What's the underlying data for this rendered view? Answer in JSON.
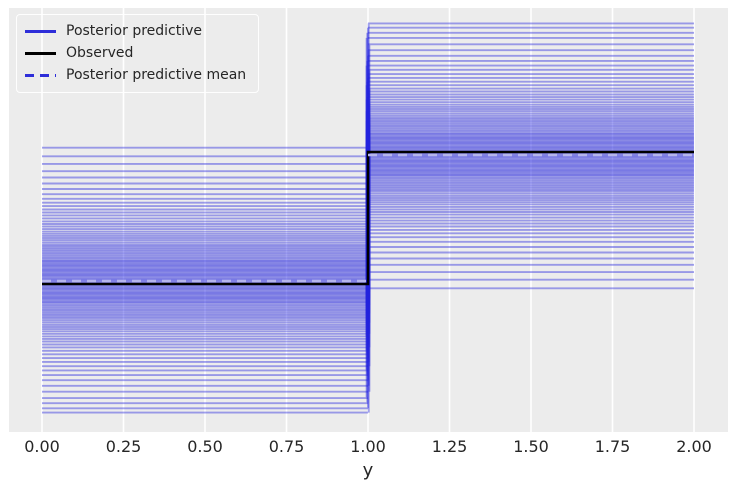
{
  "figure": {
    "background": "#ffffff",
    "axes_background": "#ececec",
    "grid_color": "#ffffff",
    "text_color": "#262626"
  },
  "legend": {
    "items": [
      {
        "label": "Posterior predictive",
        "color": "#2e2ed9",
        "style": "solid"
      },
      {
        "label": "Observed",
        "color": "#000000",
        "style": "solid"
      },
      {
        "label": "Posterior predictive mean",
        "color": "#2e2ed9",
        "style": "dashed"
      }
    ]
  },
  "chart_data": {
    "type": "line",
    "subtype": "posterior-predictive-check-discrete-step",
    "title": "",
    "xlabel": "y",
    "ylabel": "",
    "x_ticks": [
      "0.00",
      "0.25",
      "0.50",
      "0.75",
      "1.00",
      "1.25",
      "1.50",
      "1.75",
      "2.00"
    ],
    "xlim": [
      -0.1,
      2.1
    ],
    "ylim": [
      0,
      1
    ],
    "grid": "vertical-only",
    "legend_position": "upper-left",
    "observed_step": {
      "x": [
        0,
        1,
        1,
        2
      ],
      "y": [
        0.345,
        0.345,
        0.655,
        0.655
      ],
      "color": "#000000"
    },
    "mean_step": {
      "x": [
        0,
        1,
        1,
        2
      ],
      "y": [
        0.352,
        0.352,
        0.648,
        0.648
      ],
      "style": "dashed",
      "color_legend": "#2e2ed9",
      "color_on_plot": "#b6b6ec"
    },
    "posterior_draws": {
      "color": "#2323dd",
      "alpha": 0.42,
      "description": "each draw d is plotted as a step: horizontal line y=1-d for x in [0,1], vertical connector at x=1, horizontal line y=d for x in [1,2]",
      "p_one": [
        0.335,
        0.355,
        0.373,
        0.39,
        0.405,
        0.419,
        0.432,
        0.444,
        0.455,
        0.464,
        0.472,
        0.48,
        0.487,
        0.494,
        0.501,
        0.508,
        0.514,
        0.52,
        0.526,
        0.532,
        0.537,
        0.542,
        0.547,
        0.552,
        0.557,
        0.562,
        0.566,
        0.57,
        0.574,
        0.578,
        0.582,
        0.586,
        0.59,
        0.594,
        0.598,
        0.601,
        0.604,
        0.607,
        0.61,
        0.613,
        0.616,
        0.619,
        0.622,
        0.625,
        0.628,
        0.631,
        0.634,
        0.637,
        0.64,
        0.643,
        0.646,
        0.649,
        0.652,
        0.655,
        0.658,
        0.661,
        0.664,
        0.667,
        0.67,
        0.673,
        0.676,
        0.679,
        0.682,
        0.685,
        0.688,
        0.691,
        0.694,
        0.697,
        0.7,
        0.704,
        0.708,
        0.712,
        0.716,
        0.72,
        0.724,
        0.728,
        0.732,
        0.736,
        0.741,
        0.746,
        0.751,
        0.756,
        0.761,
        0.766,
        0.772,
        0.778,
        0.784,
        0.79,
        0.797,
        0.804,
        0.812,
        0.82,
        0.829,
        0.838,
        0.848,
        0.858,
        0.869,
        0.881,
        0.894,
        0.908,
        0.923,
        0.935,
        0.947,
        0.957
      ]
    }
  }
}
